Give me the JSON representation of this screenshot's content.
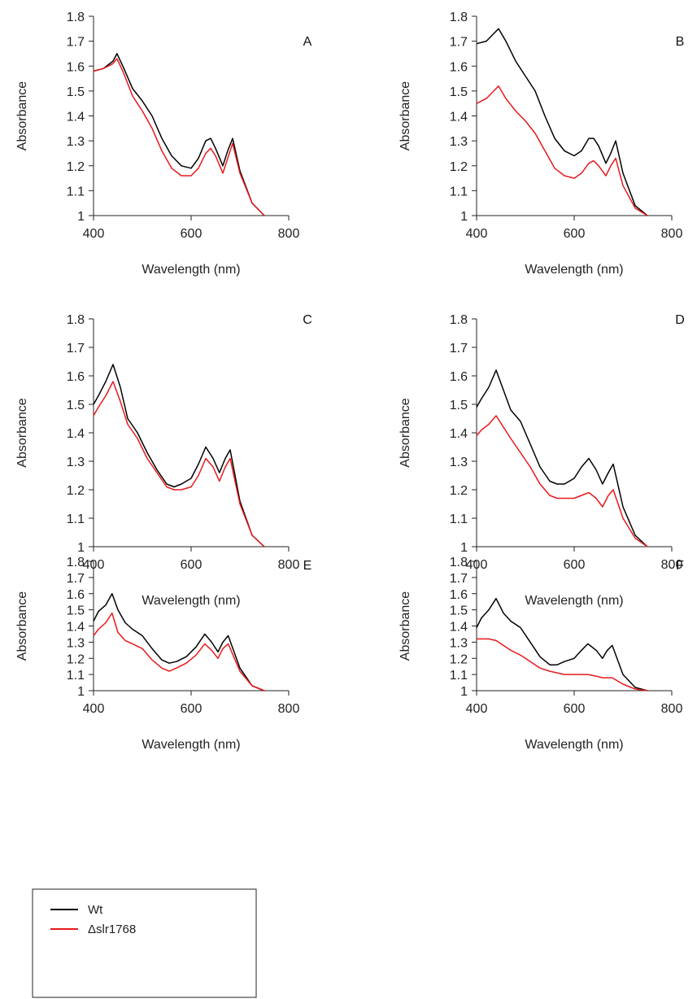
{
  "chart_data": [
    {
      "type": "line",
      "panel": "A",
      "xlabel": "Wavelength (nm)",
      "ylabel": "Absorbance",
      "xlim": [
        400,
        800
      ],
      "ylim": [
        1,
        1.8
      ],
      "xticks": [
        "400",
        "600",
        "800"
      ],
      "yticks": [
        "1",
        "1.1",
        "1.2",
        "1.3",
        "1.4",
        "1.5",
        "1.6",
        "1.7",
        "1.8"
      ],
      "x": [
        400,
        420,
        440,
        448,
        460,
        480,
        500,
        520,
        540,
        560,
        580,
        600,
        615,
        630,
        640,
        650,
        665,
        675,
        685,
        700,
        725,
        750
      ],
      "series": [
        {
          "name": "Wt",
          "values": [
            1.58,
            1.59,
            1.62,
            1.65,
            1.6,
            1.51,
            1.46,
            1.4,
            1.31,
            1.24,
            1.2,
            1.19,
            1.23,
            1.3,
            1.31,
            1.27,
            1.2,
            1.26,
            1.31,
            1.18,
            1.05,
            1.0
          ]
        },
        {
          "name": "Δslr1768",
          "values": [
            1.58,
            1.59,
            1.61,
            1.63,
            1.58,
            1.48,
            1.42,
            1.35,
            1.26,
            1.19,
            1.16,
            1.16,
            1.19,
            1.25,
            1.27,
            1.24,
            1.17,
            1.23,
            1.29,
            1.17,
            1.05,
            1.0
          ]
        }
      ]
    },
    {
      "type": "line",
      "panel": "B",
      "xlabel": "Wavelength (nm)",
      "ylabel": "Absorbance",
      "xlim": [
        400,
        800
      ],
      "ylim": [
        1,
        1.8
      ],
      "xticks": [
        "400",
        "600",
        "800"
      ],
      "yticks": [
        "1",
        "1.1",
        "1.2",
        "1.3",
        "1.4",
        "1.5",
        "1.6",
        "1.7",
        "1.8"
      ],
      "x": [
        400,
        420,
        435,
        445,
        460,
        480,
        500,
        520,
        540,
        560,
        580,
        600,
        615,
        630,
        640,
        650,
        665,
        675,
        685,
        700,
        725,
        750
      ],
      "series": [
        {
          "name": "Wt",
          "values": [
            1.69,
            1.7,
            1.73,
            1.75,
            1.7,
            1.62,
            1.56,
            1.5,
            1.4,
            1.31,
            1.26,
            1.24,
            1.26,
            1.31,
            1.31,
            1.28,
            1.21,
            1.25,
            1.3,
            1.17,
            1.04,
            1.0
          ]
        },
        {
          "name": "Δslr1768",
          "values": [
            1.45,
            1.47,
            1.5,
            1.52,
            1.47,
            1.42,
            1.38,
            1.33,
            1.26,
            1.19,
            1.16,
            1.15,
            1.17,
            1.21,
            1.22,
            1.2,
            1.16,
            1.2,
            1.23,
            1.12,
            1.03,
            1.0
          ]
        }
      ]
    },
    {
      "type": "line",
      "panel": "C",
      "xlabel": "Wavelength (nm)",
      "ylabel": "Absorbance",
      "xlim": [
        400,
        800
      ],
      "ylim": [
        1,
        1.8
      ],
      "xticks": [
        "400",
        "600",
        "800"
      ],
      "yticks": [
        "1",
        "1.1",
        "1.2",
        "1.3",
        "1.4",
        "1.5",
        "1.6",
        "1.7",
        "1.8"
      ],
      "x": [
        400,
        410,
        425,
        440,
        455,
        470,
        490,
        510,
        530,
        550,
        565,
        580,
        600,
        615,
        630,
        645,
        658,
        670,
        680,
        700,
        725,
        750
      ],
      "series": [
        {
          "name": "Wt",
          "values": [
            1.5,
            1.53,
            1.58,
            1.64,
            1.56,
            1.45,
            1.4,
            1.33,
            1.27,
            1.22,
            1.21,
            1.22,
            1.24,
            1.29,
            1.35,
            1.31,
            1.26,
            1.31,
            1.34,
            1.16,
            1.04,
            1.0
          ]
        },
        {
          "name": "Δslr1768",
          "values": [
            1.46,
            1.49,
            1.53,
            1.58,
            1.51,
            1.43,
            1.38,
            1.31,
            1.26,
            1.21,
            1.2,
            1.2,
            1.21,
            1.25,
            1.31,
            1.28,
            1.23,
            1.28,
            1.31,
            1.15,
            1.04,
            1.0
          ]
        }
      ]
    },
    {
      "type": "line",
      "panel": "D",
      "xlabel": "Wavelength (nm)",
      "ylabel": "Absorbance",
      "xlim": [
        400,
        800
      ],
      "ylim": [
        1,
        1.8
      ],
      "xticks": [
        "400",
        "600",
        "800"
      ],
      "yticks": [
        "1",
        "1.1",
        "1.2",
        "1.3",
        "1.4",
        "1.5",
        "1.6",
        "1.7",
        "1.8"
      ],
      "x": [
        400,
        410,
        425,
        440,
        455,
        470,
        490,
        510,
        530,
        550,
        565,
        580,
        600,
        615,
        630,
        645,
        658,
        670,
        680,
        700,
        725,
        750
      ],
      "series": [
        {
          "name": "Wt",
          "values": [
            1.49,
            1.52,
            1.56,
            1.62,
            1.55,
            1.48,
            1.44,
            1.36,
            1.28,
            1.23,
            1.22,
            1.22,
            1.24,
            1.28,
            1.31,
            1.27,
            1.22,
            1.26,
            1.29,
            1.14,
            1.04,
            1.0
          ]
        },
        {
          "name": "Δslr1768",
          "values": [
            1.39,
            1.41,
            1.43,
            1.46,
            1.42,
            1.38,
            1.33,
            1.28,
            1.22,
            1.18,
            1.17,
            1.17,
            1.17,
            1.18,
            1.19,
            1.17,
            1.14,
            1.18,
            1.2,
            1.1,
            1.03,
            1.0
          ]
        }
      ]
    },
    {
      "type": "line",
      "panel": "E",
      "xlabel": "Wavelength (nm)",
      "ylabel": "Absorbance",
      "xlim": [
        400,
        800
      ],
      "ylim": [
        1,
        1.8
      ],
      "xticks": [
        "400",
        "600",
        "800"
      ],
      "yticks": [
        "1",
        "1.1",
        "1.2",
        "1.3",
        "1.4",
        "1.5",
        "1.6",
        "1.7",
        "1.8"
      ],
      "x": [
        400,
        410,
        425,
        438,
        450,
        465,
        480,
        500,
        520,
        540,
        555,
        570,
        590,
        610,
        628,
        642,
        655,
        665,
        676,
        700,
        725,
        750
      ],
      "series": [
        {
          "name": "Wt",
          "values": [
            1.43,
            1.49,
            1.53,
            1.6,
            1.5,
            1.42,
            1.38,
            1.34,
            1.26,
            1.19,
            1.17,
            1.18,
            1.21,
            1.27,
            1.35,
            1.3,
            1.24,
            1.3,
            1.34,
            1.14,
            1.03,
            1.0
          ]
        },
        {
          "name": "Δslr1768",
          "values": [
            1.34,
            1.38,
            1.42,
            1.48,
            1.36,
            1.31,
            1.29,
            1.26,
            1.19,
            1.14,
            1.12,
            1.14,
            1.17,
            1.22,
            1.29,
            1.25,
            1.2,
            1.26,
            1.29,
            1.12,
            1.03,
            1.0
          ]
        }
      ]
    },
    {
      "type": "line",
      "panel": "F",
      "xlabel": "Wavelength (nm)",
      "ylabel": "Absorbance",
      "xlim": [
        400,
        800
      ],
      "ylim": [
        1,
        1.8
      ],
      "xticks": [
        "400",
        "600",
        "800"
      ],
      "yticks": [
        "1",
        "1.1",
        "1.2",
        "1.3",
        "1.4",
        "1.5",
        "1.6",
        "1.7",
        "1.8"
      ],
      "x": [
        400,
        410,
        425,
        440,
        455,
        470,
        490,
        510,
        530,
        550,
        565,
        580,
        600,
        615,
        628,
        645,
        658,
        668,
        678,
        700,
        725,
        750
      ],
      "series": [
        {
          "name": "Wt",
          "values": [
            1.39,
            1.45,
            1.5,
            1.57,
            1.48,
            1.43,
            1.39,
            1.3,
            1.21,
            1.16,
            1.16,
            1.18,
            1.2,
            1.25,
            1.29,
            1.25,
            1.2,
            1.25,
            1.28,
            1.1,
            1.02,
            1.0
          ]
        },
        {
          "name": "Δslr1768",
          "values": [
            1.32,
            1.32,
            1.32,
            1.31,
            1.28,
            1.25,
            1.22,
            1.18,
            1.14,
            1.12,
            1.11,
            1.1,
            1.1,
            1.1,
            1.1,
            1.09,
            1.08,
            1.08,
            1.08,
            1.04,
            1.01,
            1.0
          ]
        }
      ]
    }
  ],
  "legend": {
    "position": "bottom-left",
    "entries": [
      {
        "label": "Wt",
        "color": "#000000"
      },
      {
        "label": "Δslr1768",
        "color": "#e8191c"
      }
    ]
  },
  "colors": {
    "wt": "#000000",
    "mutant": "#e8191c",
    "axis": "#222222"
  }
}
